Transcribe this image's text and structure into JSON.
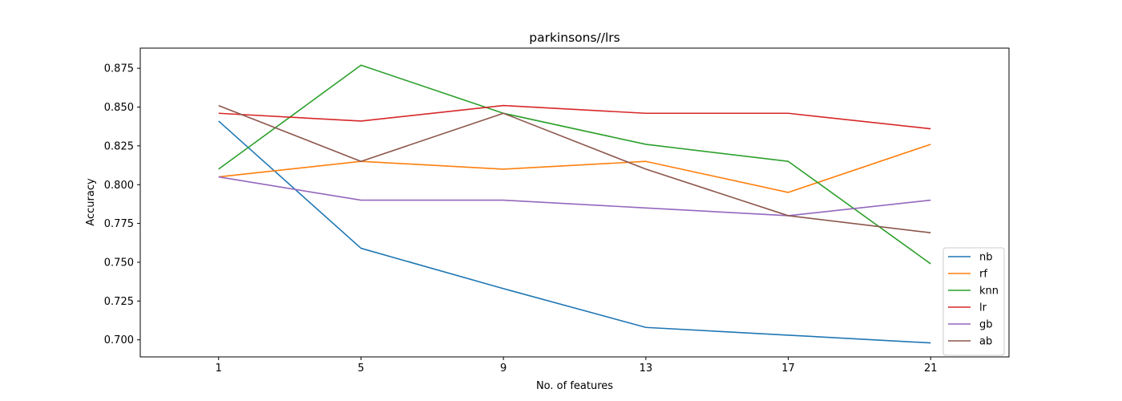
{
  "chart_data": {
    "type": "line",
    "title": "parkinsons//lrs",
    "xlabel": "No. of features",
    "ylabel": "Accuracy",
    "x": [
      1,
      5,
      9,
      13,
      17,
      21
    ],
    "x_ticks": [
      "1",
      "5",
      "9",
      "13",
      "17",
      "21"
    ],
    "xlim": [
      -1.2,
      23.2
    ],
    "ylim": [
      0.689,
      0.888
    ],
    "y_ticks": [
      "0.700",
      "0.725",
      "0.750",
      "0.775",
      "0.800",
      "0.825",
      "0.850",
      "0.875"
    ],
    "grid": false,
    "legend_position": "lower-right",
    "series": [
      {
        "name": "nb",
        "color": "#1f77b4",
        "values": [
          0.841,
          0.759,
          0.733,
          0.708,
          0.703,
          0.698
        ]
      },
      {
        "name": "rf",
        "color": "#ff7f0e",
        "values": [
          0.805,
          0.815,
          0.81,
          0.815,
          0.795,
          0.826
        ]
      },
      {
        "name": "knn",
        "color": "#2ca02c",
        "values": [
          0.81,
          0.877,
          0.846,
          0.826,
          0.815,
          0.749
        ]
      },
      {
        "name": "lr",
        "color": "#d62728",
        "values": [
          0.846,
          0.841,
          0.851,
          0.846,
          0.846,
          0.836
        ]
      },
      {
        "name": "gb",
        "color": "#9467bd",
        "values": [
          0.805,
          0.79,
          0.79,
          0.785,
          0.78,
          0.79
        ]
      },
      {
        "name": "ab",
        "color": "#8c564b",
        "values": [
          0.851,
          0.815,
          0.846,
          0.81,
          0.78,
          0.769
        ]
      }
    ]
  }
}
